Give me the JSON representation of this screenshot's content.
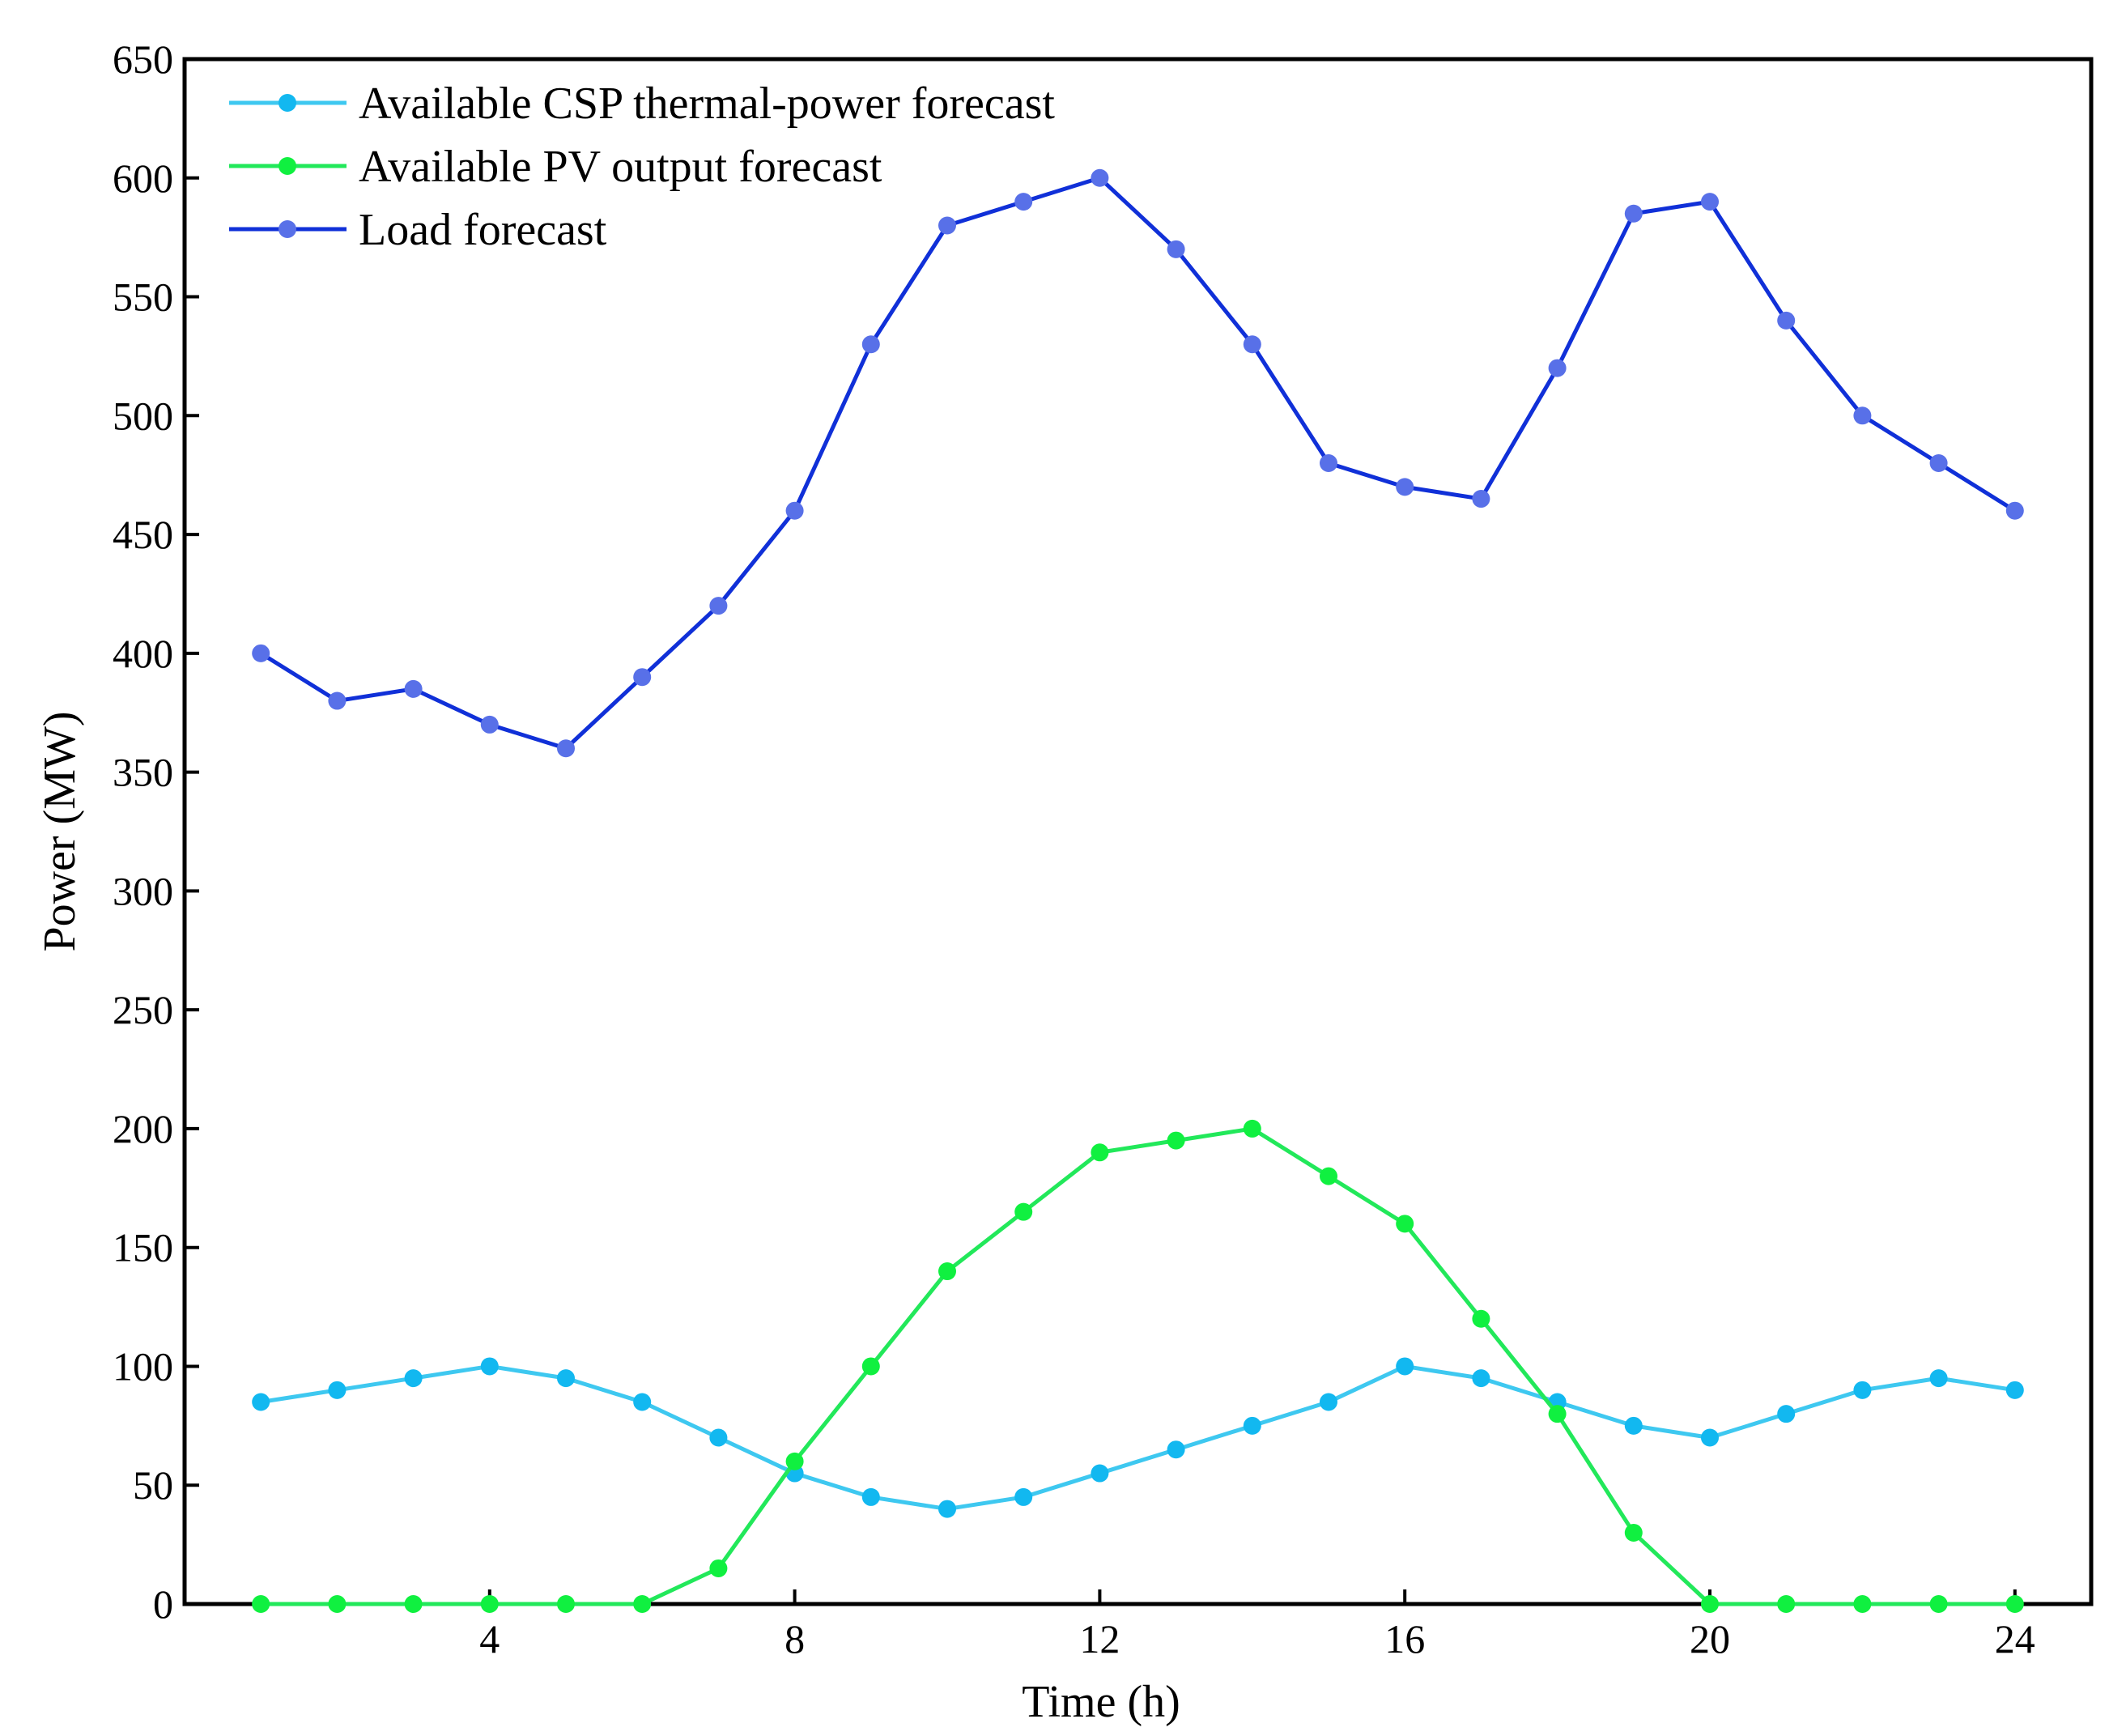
{
  "chart_data": {
    "type": "line",
    "xlabel": "Time (h)",
    "ylabel": "Power (MW)",
    "xlim": [
      0,
      25
    ],
    "ylim": [
      0,
      650
    ],
    "xticks": [
      4,
      8,
      12,
      16,
      20,
      24
    ],
    "yticks": [
      0,
      50,
      100,
      150,
      200,
      250,
      300,
      350,
      400,
      450,
      500,
      550,
      600,
      650
    ],
    "grid": false,
    "legend_position": "top-left",
    "x": [
      1,
      2,
      3,
      4,
      5,
      6,
      7,
      8,
      9,
      10,
      11,
      12,
      13,
      14,
      15,
      16,
      17,
      18,
      19,
      20,
      21,
      22,
      23,
      24
    ],
    "series": [
      {
        "name": "Available CSP thermal-power forecast",
        "line_color": "#3ec8f0",
        "marker_color": "#12b8f0",
        "values": [
          85,
          90,
          95,
          100,
          95,
          85,
          70,
          55,
          45,
          40,
          45,
          55,
          65,
          75,
          85,
          100,
          95,
          85,
          75,
          70,
          80,
          90,
          95,
          90
        ]
      },
      {
        "name": "Available PV output forecast",
        "line_color": "#22e85a",
        "marker_color": "#10f040",
        "values": [
          0,
          0,
          0,
          0,
          0,
          0,
          15,
          60,
          100,
          140,
          165,
          190,
          195,
          200,
          180,
          160,
          120,
          80,
          30,
          0,
          0,
          0,
          0,
          0
        ]
      },
      {
        "name": "Load forecast",
        "line_color": "#1030d8",
        "marker_color": "#5870e8",
        "values": [
          400,
          380,
          385,
          370,
          360,
          390,
          420,
          460,
          530,
          580,
          590,
          600,
          570,
          530,
          480,
          470,
          465,
          520,
          585,
          590,
          540,
          500,
          480,
          460
        ]
      }
    ]
  }
}
